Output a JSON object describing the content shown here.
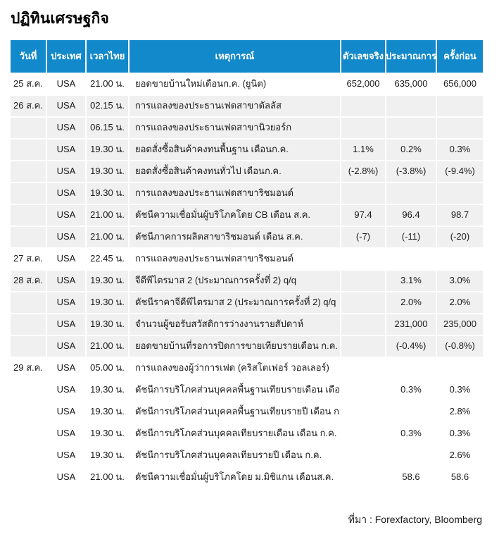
{
  "page": {
    "title": "ปฏิทินเศรษฐกิจ",
    "source_note": "ที่มา : Forexfactory, Bloomberg"
  },
  "colors": {
    "header_bg": "#1289ca",
    "header_text": "#ffffff",
    "shaded_row_bg": "#f0f0f0",
    "body_text": "#1a1a1a"
  },
  "table": {
    "columns": [
      {
        "key": "date",
        "label": "วันที่"
      },
      {
        "key": "country",
        "label": "ประเทศ"
      },
      {
        "key": "time",
        "label": "เวลาไทย"
      },
      {
        "key": "event",
        "label": "เหตุการณ์"
      },
      {
        "key": "actual",
        "label": "ตัวเลขจริง"
      },
      {
        "key": "forecast",
        "label": "ประมาณการ"
      },
      {
        "key": "previous",
        "label": "ครั้งก่อน"
      }
    ],
    "rows": [
      {
        "date": "25 ส.ค.",
        "country": "USA",
        "time": "21.00 น.",
        "event": "ยอดขายบ้านใหม่เดือนก.ค. (ยูนิต)",
        "actual": "652,000",
        "forecast": "635,000",
        "previous": "656,000"
      },
      {
        "date": "26 ส.ค.",
        "country": "USA",
        "time": "02.15 น.",
        "event": "การแถลงของประธานเฟดสาขาดัลลัส",
        "actual": "",
        "forecast": "",
        "previous": ""
      },
      {
        "date": "",
        "country": "USA",
        "time": "06.15 น.",
        "event": "การแถลงของประธานเฟดสาขานิวยอร์ก",
        "actual": "",
        "forecast": "",
        "previous": ""
      },
      {
        "date": "",
        "country": "USA",
        "time": "19.30 น.",
        "event": "ยอดสั่งซื้อสินค้าคงทนพื้นฐาน เดือนก.ค.",
        "actual": "1.1%",
        "forecast": "0.2%",
        "previous": "0.3%"
      },
      {
        "date": "",
        "country": "USA",
        "time": "19.30 น.",
        "event": "ยอดสั่งซื้อสินค้าคงทนทั่วไป เดือนก.ค.",
        "actual": "(-2.8%)",
        "forecast": "(-3.8%)",
        "previous": "(-9.4%)"
      },
      {
        "date": "",
        "country": "USA",
        "time": "19.30 น.",
        "event": "การแถลงของประธานเฟดสาขาริชมอนด์",
        "actual": "",
        "forecast": "",
        "previous": ""
      },
      {
        "date": "",
        "country": "USA",
        "time": "21.00 น.",
        "event": "ดัชนีความเชื่อมั่นผู้บริโภคโดย CB เดือน ส.ค.",
        "actual": "97.4",
        "forecast": "96.4",
        "previous": "98.7"
      },
      {
        "date": "",
        "country": "USA",
        "time": "21.00 น.",
        "event": "ดัชนีภาคการผลิตสาขาริชมอนด์ เดือน ส.ค.",
        "actual": "(-7)",
        "forecast": "(-11)",
        "previous": "(-20)"
      },
      {
        "date": "27 ส.ค.",
        "country": "USA",
        "time": "22.45 น.",
        "event": "การแถลงของประธานเฟดสาขาริชมอนด์",
        "actual": "",
        "forecast": "",
        "previous": ""
      },
      {
        "date": "28 ส.ค.",
        "country": "USA",
        "time": "19.30 น.",
        "event": "จีดีพีไตรมาส 2 (ประมาณการครั้งที่ 2) q/q",
        "actual": "",
        "forecast": "3.1%",
        "previous": "3.0%"
      },
      {
        "date": "",
        "country": "USA",
        "time": "19.30 น.",
        "event": "ดัชนีราคาจีดีพีไตรมาส 2 (ประมาณการครั้งที่ 2) q/q",
        "actual": "",
        "forecast": "2.0%",
        "previous": "2.0%"
      },
      {
        "date": "",
        "country": "USA",
        "time": "19.30 น.",
        "event": "จำนวนผู้ขอรับสวัสดิการว่างงานรายสัปดาห์",
        "actual": "",
        "forecast": "231,000",
        "previous": "235,000"
      },
      {
        "date": "",
        "country": "USA",
        "time": "21.00 น.",
        "event": "ยอดขายบ้านที่รอการปิดการขายเทียบรายเดือน ก.ค.",
        "actual": "",
        "forecast": "(-0.4%)",
        "previous": "(-0.8%)"
      },
      {
        "date": "29 ส.ค.",
        "country": "USA",
        "time": "05.00 น.",
        "event": "การแถลงของผู้ว่าการเฟด (คริสโตเฟอร์ วอลเลอร์)",
        "actual": "",
        "forecast": "",
        "previous": ""
      },
      {
        "date": "",
        "country": "USA",
        "time": "19.30 น.",
        "event": "ดัชนีการบริโภคส่วนบุคคลพื้นฐานเทียบรายเดือน เดือน ก.ค.",
        "actual": "",
        "forecast": "0.3%",
        "previous": "0.3%"
      },
      {
        "date": "",
        "country": "USA",
        "time": "19.30 น.",
        "event": "ดัชนีการบริโภคส่วนบุคคลพื้นฐานเทียบรายปี เดือน ก.ค.",
        "actual": "",
        "forecast": "",
        "previous": "2.8%"
      },
      {
        "date": "",
        "country": "USA",
        "time": "19.30 น.",
        "event": "ดัชนีการบริโภคส่วนบุคคลเทียบรายเดือน เดือน ก.ค.",
        "actual": "",
        "forecast": "0.3%",
        "previous": "0.3%"
      },
      {
        "date": "",
        "country": "USA",
        "time": "19.30 น.",
        "event": "ดัชนีการบริโภคส่วนบุคคลเทียบรายปี เดือน ก.ค.",
        "actual": "",
        "forecast": "",
        "previous": "2.6%"
      },
      {
        "date": "",
        "country": "USA",
        "time": "21.00 น.",
        "event": "ดัชนีความเชื่อมั่นผู้บริโภคโดย ม.มิชิแกน เดือนส.ค.",
        "actual": "",
        "forecast": "58.6",
        "previous": "58.6"
      }
    ]
  }
}
